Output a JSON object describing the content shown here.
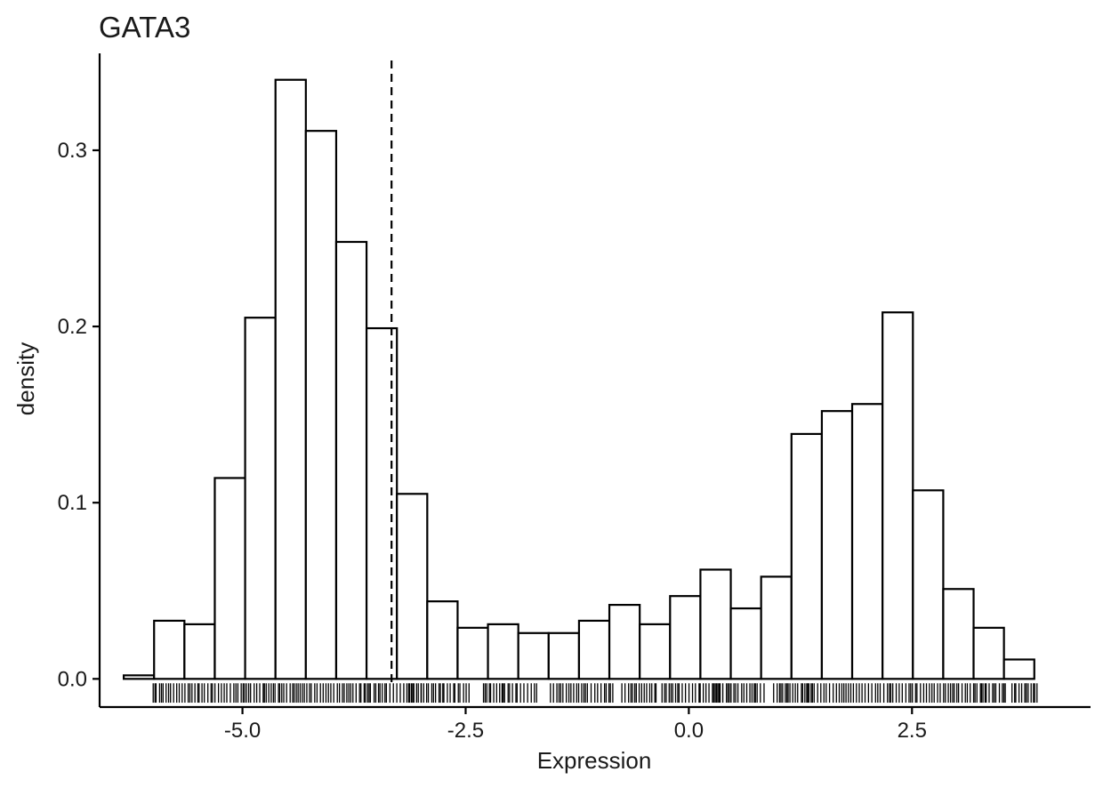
{
  "chart_data": {
    "type": "bar",
    "subtype": "histogram",
    "title": "GATA3",
    "xlabel": "Expression",
    "ylabel": "density",
    "xlim": [
      -6.6,
      4.5
    ],
    "ylim": [
      -0.016,
      0.355
    ],
    "x_ticks": [
      {
        "value": -5.0,
        "label": "-5.0"
      },
      {
        "value": -2.5,
        "label": "-2.5"
      },
      {
        "value": 0.0,
        "label": "0.0"
      },
      {
        "value": 2.5,
        "label": "2.5"
      }
    ],
    "y_ticks": [
      {
        "value": 0.0,
        "label": "0.0"
      },
      {
        "value": 0.1,
        "label": "0.1"
      },
      {
        "value": 0.2,
        "label": "0.2"
      },
      {
        "value": 0.3,
        "label": "0.3"
      }
    ],
    "bins": [
      {
        "x0": -6.33,
        "x1": -5.99,
        "density": 0.002
      },
      {
        "x0": -5.99,
        "x1": -5.65,
        "density": 0.033
      },
      {
        "x0": -5.65,
        "x1": -5.31,
        "density": 0.031
      },
      {
        "x0": -5.31,
        "x1": -4.97,
        "density": 0.114
      },
      {
        "x0": -4.97,
        "x1": -4.63,
        "density": 0.205
      },
      {
        "x0": -4.63,
        "x1": -4.29,
        "density": 0.34
      },
      {
        "x0": -4.29,
        "x1": -3.95,
        "density": 0.311
      },
      {
        "x0": -3.95,
        "x1": -3.61,
        "density": 0.248
      },
      {
        "x0": -3.61,
        "x1": -3.27,
        "density": 0.199
      },
      {
        "x0": -3.27,
        "x1": -2.93,
        "density": 0.105
      },
      {
        "x0": -2.93,
        "x1": -2.59,
        "density": 0.044
      },
      {
        "x0": -2.59,
        "x1": -2.25,
        "density": 0.029
      },
      {
        "x0": -2.25,
        "x1": -1.91,
        "density": 0.031
      },
      {
        "x0": -1.91,
        "x1": -1.57,
        "density": 0.026
      },
      {
        "x0": -1.57,
        "x1": -1.23,
        "density": 0.026
      },
      {
        "x0": -1.23,
        "x1": -0.89,
        "density": 0.033
      },
      {
        "x0": -0.89,
        "x1": -0.55,
        "density": 0.042
      },
      {
        "x0": -0.55,
        "x1": -0.21,
        "density": 0.031
      },
      {
        "x0": -0.21,
        "x1": 0.13,
        "density": 0.047
      },
      {
        "x0": 0.13,
        "x1": 0.47,
        "density": 0.062
      },
      {
        "x0": 0.47,
        "x1": 0.81,
        "density": 0.04
      },
      {
        "x0": 0.81,
        "x1": 1.15,
        "density": 0.058
      },
      {
        "x0": 1.15,
        "x1": 1.49,
        "density": 0.139
      },
      {
        "x0": 1.49,
        "x1": 1.83,
        "density": 0.152
      },
      {
        "x0": 1.83,
        "x1": 2.17,
        "density": 0.156
      },
      {
        "x0": 2.17,
        "x1": 2.51,
        "density": 0.208
      },
      {
        "x0": 2.51,
        "x1": 2.85,
        "density": 0.107
      },
      {
        "x0": 2.85,
        "x1": 3.19,
        "density": 0.051
      },
      {
        "x0": 3.19,
        "x1": 3.53,
        "density": 0.029
      },
      {
        "x0": 3.53,
        "x1": 3.87,
        "density": 0.011
      }
    ],
    "threshold": {
      "x": -3.33,
      "style": "dashed"
    },
    "rug": {
      "ranges": [
        [
          -5.98,
          -2.45
        ],
        [
          -2.3,
          -1.7
        ],
        [
          -1.55,
          -0.85
        ],
        [
          -0.75,
          -0.35
        ],
        [
          -0.3,
          0.85
        ],
        [
          0.95,
          3.55
        ],
        [
          3.65,
          3.9
        ]
      ],
      "points": [
        -6.0,
        -3.0,
        3.62,
        3.78,
        3.86,
        3.9
      ]
    },
    "grid": false,
    "legend": "none"
  }
}
